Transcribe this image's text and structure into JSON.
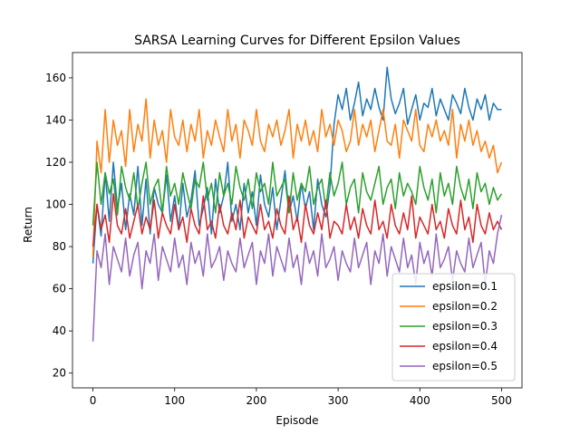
{
  "chart_data": {
    "type": "line",
    "title": "SARSA Learning Curves for Different Epsilon Values",
    "xlabel": "Episode",
    "ylabel": "Return",
    "xlim": [
      -25,
      525
    ],
    "ylim": [
      13,
      172
    ],
    "xticks": [
      0,
      100,
      200,
      300,
      400,
      500
    ],
    "yticks": [
      20,
      40,
      60,
      80,
      100,
      120,
      140,
      160
    ],
    "grid": false,
    "legend_position": "lower-right",
    "x": {
      "start": 0,
      "end": 500,
      "step": 5
    },
    "series": [
      {
        "name": "epsilon=0.1",
        "color": "#1f77b4",
        "values": [
          72,
          100,
          85,
          115,
          92,
          120,
          98,
          110,
          88,
          105,
          95,
          118,
          90,
          112,
          86,
          108,
          100,
          96,
          114,
          92,
          104,
          88,
          110,
          94,
          102,
          116,
          90,
          98,
          108,
          86,
          112,
          96,
          104,
          120,
          92,
          100,
          88,
          110,
          96,
          106,
          90,
          114,
          100,
          94,
          108,
          88,
          102,
          116,
          96,
          104,
          92,
          110,
          98,
          106,
          88,
          112,
          100,
          94,
          108,
          138,
          152,
          145,
          155,
          140,
          148,
          158,
          142,
          150,
          145,
          155,
          146,
          140,
          165,
          150,
          143,
          148,
          155,
          138,
          145,
          152,
          140,
          148,
          146,
          155,
          142,
          150,
          145,
          140,
          152,
          148,
          143,
          155,
          146,
          140,
          150,
          145,
          152,
          140,
          148,
          145,
          145
        ]
      },
      {
        "name": "epsilon=0.2",
        "color": "#ff7f0e",
        "values": [
          75,
          130,
          115,
          145,
          120,
          140,
          128,
          135,
          118,
          145,
          125,
          138,
          130,
          150,
          122,
          140,
          128,
          135,
          120,
          145,
          132,
          128,
          140,
          125,
          138,
          130,
          145,
          122,
          135,
          128,
          140,
          132,
          125,
          145,
          130,
          138,
          122,
          140,
          135,
          128,
          145,
          130,
          125,
          138,
          132,
          140,
          128,
          135,
          145,
          122,
          138,
          130,
          140,
          128,
          135,
          125,
          145,
          132,
          138,
          128,
          140,
          135,
          125,
          130,
          145,
          128,
          138,
          132,
          140,
          125,
          135,
          145,
          130,
          128,
          138,
          122,
          140,
          135,
          130,
          145,
          128,
          125,
          138,
          132,
          140,
          130,
          135,
          128,
          145,
          122,
          138,
          130,
          140,
          128,
          135,
          125,
          130,
          122,
          128,
          115,
          120
        ]
      },
      {
        "name": "epsilon=0.3",
        "color": "#2ca02c",
        "values": [
          90,
          120,
          100,
          115,
          105,
          112,
          95,
          118,
          108,
          102,
          115,
          98,
          110,
          120,
          100,
          108,
          112,
          96,
          118,
          104,
          110,
          100,
          115,
          106,
          98,
          112,
          108,
          120,
          102,
          110,
          96,
          115,
          104,
          110,
          100,
          118,
          108,
          102,
          112,
          98,
          115,
          106,
          110,
          100,
          120,
          104,
          108,
          112,
          96,
          115,
          102,
          110,
          106,
          118,
          100,
          108,
          112,
          98,
          115,
          104,
          110,
          120,
          100,
          108,
          112,
          96,
          115,
          106,
          102,
          110,
          118,
          100,
          108,
          112,
          98,
          115,
          104,
          110,
          106,
          100,
          118,
          108,
          102,
          112,
          96,
          115,
          104,
          110,
          100,
          118,
          108,
          102,
          112,
          98,
          115,
          106,
          110,
          100,
          108,
          102,
          105
        ]
      },
      {
        "name": "epsilon=0.4",
        "color": "#d62728",
        "values": [
          80,
          100,
          88,
          95,
          82,
          105,
          90,
          86,
          98,
          84,
          92,
          100,
          86,
          94,
          88,
          102,
          84,
          96,
          90,
          86,
          100,
          88,
          94,
          82,
          98,
          90,
          86,
          104,
          88,
          92,
          84,
          100,
          90,
          86,
          96,
          88,
          102,
          84,
          94,
          90,
          86,
          100,
          88,
          92,
          84,
          98,
          90,
          86,
          104,
          88,
          94,
          82,
          100,
          90,
          86,
          96,
          88,
          102,
          84,
          92,
          90,
          86,
          100,
          88,
          94,
          84,
          98,
          90,
          86,
          102,
          88,
          92,
          84,
          100,
          90,
          86,
          96,
          88,
          104,
          84,
          94,
          90,
          86,
          100,
          88,
          92,
          84,
          98,
          90,
          86,
          102,
          88,
          94,
          82,
          100,
          90,
          86,
          96,
          88,
          92,
          88
        ]
      },
      {
        "name": "epsilon=0.5",
        "color": "#9467bd",
        "values": [
          35,
          78,
          70,
          86,
          62,
          80,
          74,
          68,
          84,
          66,
          76,
          82,
          60,
          78,
          72,
          86,
          64,
          80,
          74,
          68,
          84,
          70,
          76,
          62,
          82,
          72,
          78,
          66,
          86,
          70,
          74,
          80,
          64,
          78,
          72,
          68,
          84,
          70,
          76,
          82,
          62,
          78,
          72,
          86,
          66,
          80,
          74,
          68,
          84,
          70,
          76,
          62,
          82,
          72,
          78,
          66,
          86,
          70,
          74,
          80,
          64,
          78,
          72,
          68,
          84,
          70,
          76,
          82,
          62,
          78,
          72,
          86,
          66,
          80,
          74,
          68,
          84,
          70,
          76,
          62,
          82,
          72,
          78,
          66,
          86,
          70,
          74,
          80,
          64,
          78,
          72,
          68,
          84,
          70,
          76,
          82,
          62,
          78,
          72,
          86,
          95
        ]
      }
    ]
  }
}
